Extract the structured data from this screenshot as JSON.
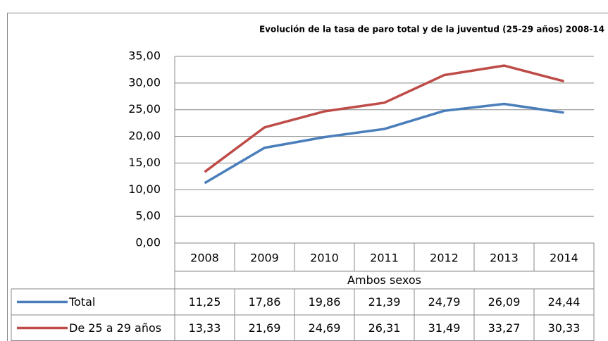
{
  "chart_data": {
    "type": "line",
    "title": "Evolución de la tasa de paro total y de la juventud  (25-29 años) 2008-14",
    "x_label": "Ambos sexos",
    "categories": [
      "2008",
      "2009",
      "2010",
      "2011",
      "2012",
      "2013",
      "2014"
    ],
    "series": [
      {
        "name": "Total",
        "color": "#4a7ebb",
        "values": [
          11.25,
          17.86,
          19.86,
          21.39,
          24.79,
          26.09,
          24.44
        ],
        "value_labels": [
          "11,25",
          "17,86",
          "19,86",
          "21,39",
          "24,79",
          "26,09",
          "24,44"
        ]
      },
      {
        "name": "De 25 a 29 años",
        "color": "#be4b48",
        "values": [
          13.33,
          21.69,
          24.69,
          26.31,
          31.49,
          33.27,
          30.33
        ],
        "value_labels": [
          "13,33",
          "21,69",
          "24,69",
          "26,31",
          "31,49",
          "33,27",
          "30,33"
        ]
      }
    ],
    "ylim": [
      0,
      35
    ],
    "yticks": [
      {
        "value": 0,
        "label": "0,00"
      },
      {
        "value": 5,
        "label": "5,00"
      },
      {
        "value": 10,
        "label": "10,00"
      },
      {
        "value": 15,
        "label": "15,00"
      },
      {
        "value": 20,
        "label": "20,00"
      },
      {
        "value": 25,
        "label": "25,00"
      },
      {
        "value": 30,
        "label": "30,00"
      },
      {
        "value": 35,
        "label": "35,00"
      }
    ],
    "grid": true
  }
}
